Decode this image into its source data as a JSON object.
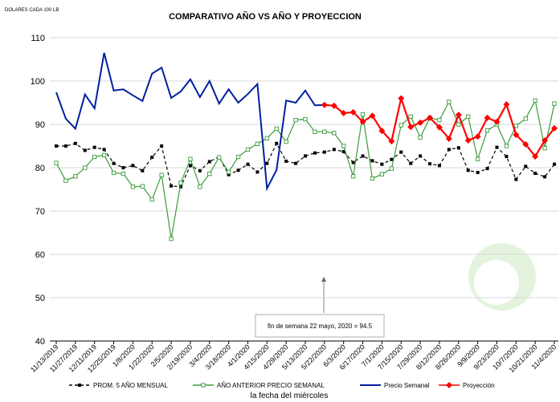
{
  "chart_data": {
    "type": "line",
    "title": "COMPARATIVO AÑO VS  AÑO Y PROYECCION",
    "y_axis_label": "DOLARES CADA 100 LB",
    "x_axis_label": "la fecha del miércoles",
    "annotation": "fin de semana 22 mayo, 2020 = 94.5",
    "categories": [
      "11/13/2019",
      null,
      "11/27/2019",
      null,
      "12/11/2019",
      null,
      "12/25/2019",
      null,
      "1/8/2020",
      null,
      "1/22/2020",
      null,
      "2/5/2020",
      null,
      "2/19/2020",
      null,
      "3/4/2020",
      null,
      "3/18/2020",
      null,
      "4/1/2020",
      null,
      "4/15/2020",
      null,
      "4/29/2020",
      null,
      "5/13/2020",
      null,
      "5/22/2020",
      null,
      "6/3/2020",
      null,
      "6/17/2020",
      null,
      "7/1/2020",
      null,
      "7/15/2020",
      null,
      "7/29/2020",
      null,
      "8/12/2020",
      null,
      "8/26/2020",
      null,
      "9/9/2020",
      null,
      "9/23/2020",
      null,
      "10/7/2020",
      null,
      "10/21/2020",
      null,
      "11/4/2020"
    ],
    "ylim": [
      40,
      110
    ],
    "yticks": [
      40,
      50,
      60,
      70,
      80,
      90,
      100,
      110
    ],
    "grid": true,
    "legend": "bottom",
    "series": [
      {
        "name": "PROM. 5 AÑO MENSUAL",
        "color": "#000000",
        "dash": true,
        "marker": "square",
        "values": [
          85,
          85,
          85.6,
          84,
          84.7,
          84.2,
          81,
          80,
          80.5,
          79.3,
          82.4,
          85,
          75.8,
          75.6,
          80.5,
          79.3,
          81.4,
          82.5,
          78.4,
          79.4,
          80.8,
          79,
          81,
          85.6,
          81.5,
          81,
          82.7,
          83.4,
          83.6,
          84.2,
          83.7,
          81.2,
          82.7,
          81.6,
          80.8,
          81.9,
          83.6,
          81,
          82.7,
          80.9,
          80.5,
          84.2,
          84.6,
          79.4,
          78.9,
          79.8,
          84.7,
          82.6,
          77.3,
          80.3,
          78.7,
          77.9,
          80.8
        ]
      },
      {
        "name": "AÑO ANTERIOR PRECIO SEMANAL",
        "color": "#3a9a3a",
        "dash": false,
        "marker": "hollow-square",
        "values": [
          81.1,
          77,
          78,
          80,
          82.5,
          82.9,
          78.8,
          78.6,
          75.6,
          75.7,
          72.7,
          78.3,
          63.6,
          76.5,
          82,
          75.6,
          78.6,
          82.4,
          79,
          82.5,
          84.2,
          85.5,
          86.8,
          89,
          86,
          91,
          91.2,
          88.3,
          88.3,
          88,
          85,
          78,
          92.3,
          77.5,
          78.5,
          79.8,
          89.8,
          91.8,
          87,
          91.5,
          91,
          95.2,
          90,
          91.8,
          82,
          88.6,
          90,
          85,
          89.7,
          91.3,
          95.5,
          84.5,
          94.8
        ]
      },
      {
        "name": "Precio Semanal",
        "color": "#00209f",
        "dash": false,
        "marker": "none",
        "values": [
          97.4,
          91.3,
          89,
          96.9,
          93.7,
          106.5,
          97.8,
          98.1,
          96.7,
          95.4,
          101.7,
          103.1,
          96.1,
          97.6,
          100.4,
          96.3,
          100,
          94.8,
          98.1,
          95,
          97,
          99.3,
          75.2,
          79.5,
          95.5,
          95,
          97.8,
          94.4,
          94.5,
          null,
          null,
          null,
          null,
          null,
          null,
          null,
          null,
          null,
          null,
          null,
          null,
          null,
          null,
          null,
          null,
          null,
          null,
          null,
          null,
          null,
          null,
          null,
          null
        ]
      },
      {
        "name": "Proyección",
        "color": "#ff0000",
        "dash": false,
        "marker": "diamond",
        "values": [
          null,
          null,
          null,
          null,
          null,
          null,
          null,
          null,
          null,
          null,
          null,
          null,
          null,
          null,
          null,
          null,
          null,
          null,
          null,
          null,
          null,
          null,
          null,
          null,
          null,
          null,
          null,
          null,
          94.5,
          94.3,
          92.6,
          92.8,
          90.6,
          92,
          88.5,
          86.1,
          96,
          89.4,
          90.4,
          91.5,
          89.3,
          86.7,
          92.2,
          86.3,
          87.2,
          91.5,
          90.6,
          94.6,
          87.6,
          85.4,
          82.6,
          86.3,
          89.1
        ]
      }
    ]
  }
}
